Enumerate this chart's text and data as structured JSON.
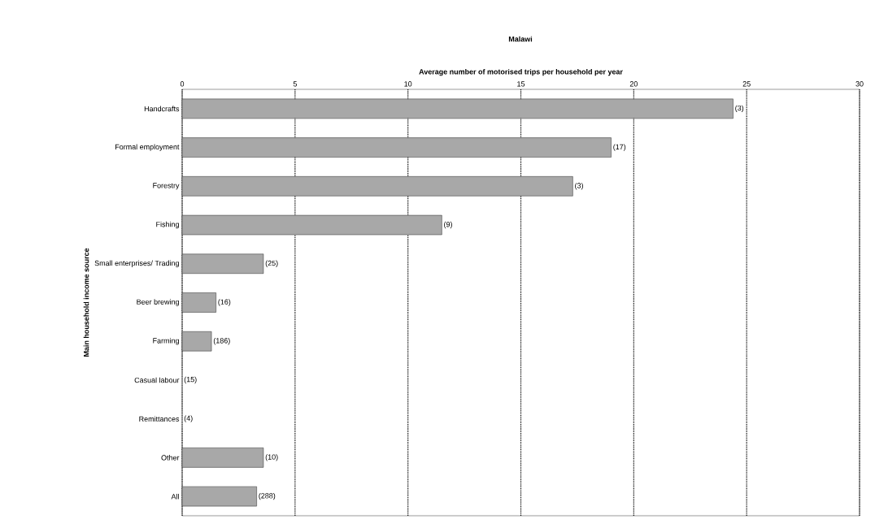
{
  "chart_data": {
    "type": "bar",
    "orientation": "horizontal",
    "title": "Malawi",
    "xlabel": "Average number of motorised trips per household per year",
    "ylabel": "Main household income source",
    "categories": [
      "Handcrafts",
      "Formal employment",
      "Forestry",
      "Fishing",
      "Small enterprises/ Trading",
      "Beer brewing",
      "Farming",
      "Casual labour",
      "Remittances",
      "Other",
      "All"
    ],
    "values": [
      24.4,
      19.0,
      17.3,
      11.5,
      3.6,
      1.5,
      1.3,
      0,
      0,
      3.6,
      3.3
    ],
    "color": "#a8a8a8",
    "xlim": [
      0,
      30
    ],
    "xticks": [
      0,
      5,
      10,
      15,
      20,
      25,
      30
    ],
    "grid": "x",
    "line_style": "dotted",
    "annotations": [
      {
        "text": "(3)",
        "x": 24.4,
        "y": "Handcrafts"
      },
      {
        "text": "(17)",
        "x": 19.0,
        "y": "Formal employment"
      },
      {
        "text": "(3)",
        "x": 17.3,
        "y": "Forestry"
      },
      {
        "text": "(9)",
        "x": 11.5,
        "y": "Fishing"
      },
      {
        "text": "(25)",
        "x": 3.6,
        "y": "Small enterprises/ Trading"
      },
      {
        "text": "(16)",
        "x": 1.5,
        "y": "Beer brewing"
      },
      {
        "text": "(186)",
        "x": 1.3,
        "y": "Farming"
      },
      {
        "text": "(15)",
        "x": 0,
        "y": "Casual labour"
      },
      {
        "text": "(4)",
        "x": 0,
        "y": "Remittances"
      },
      {
        "text": "(10)",
        "x": 3.6,
        "y": "Other"
      },
      {
        "text": "(288)",
        "x": 3.3,
        "y": "All"
      }
    ]
  }
}
